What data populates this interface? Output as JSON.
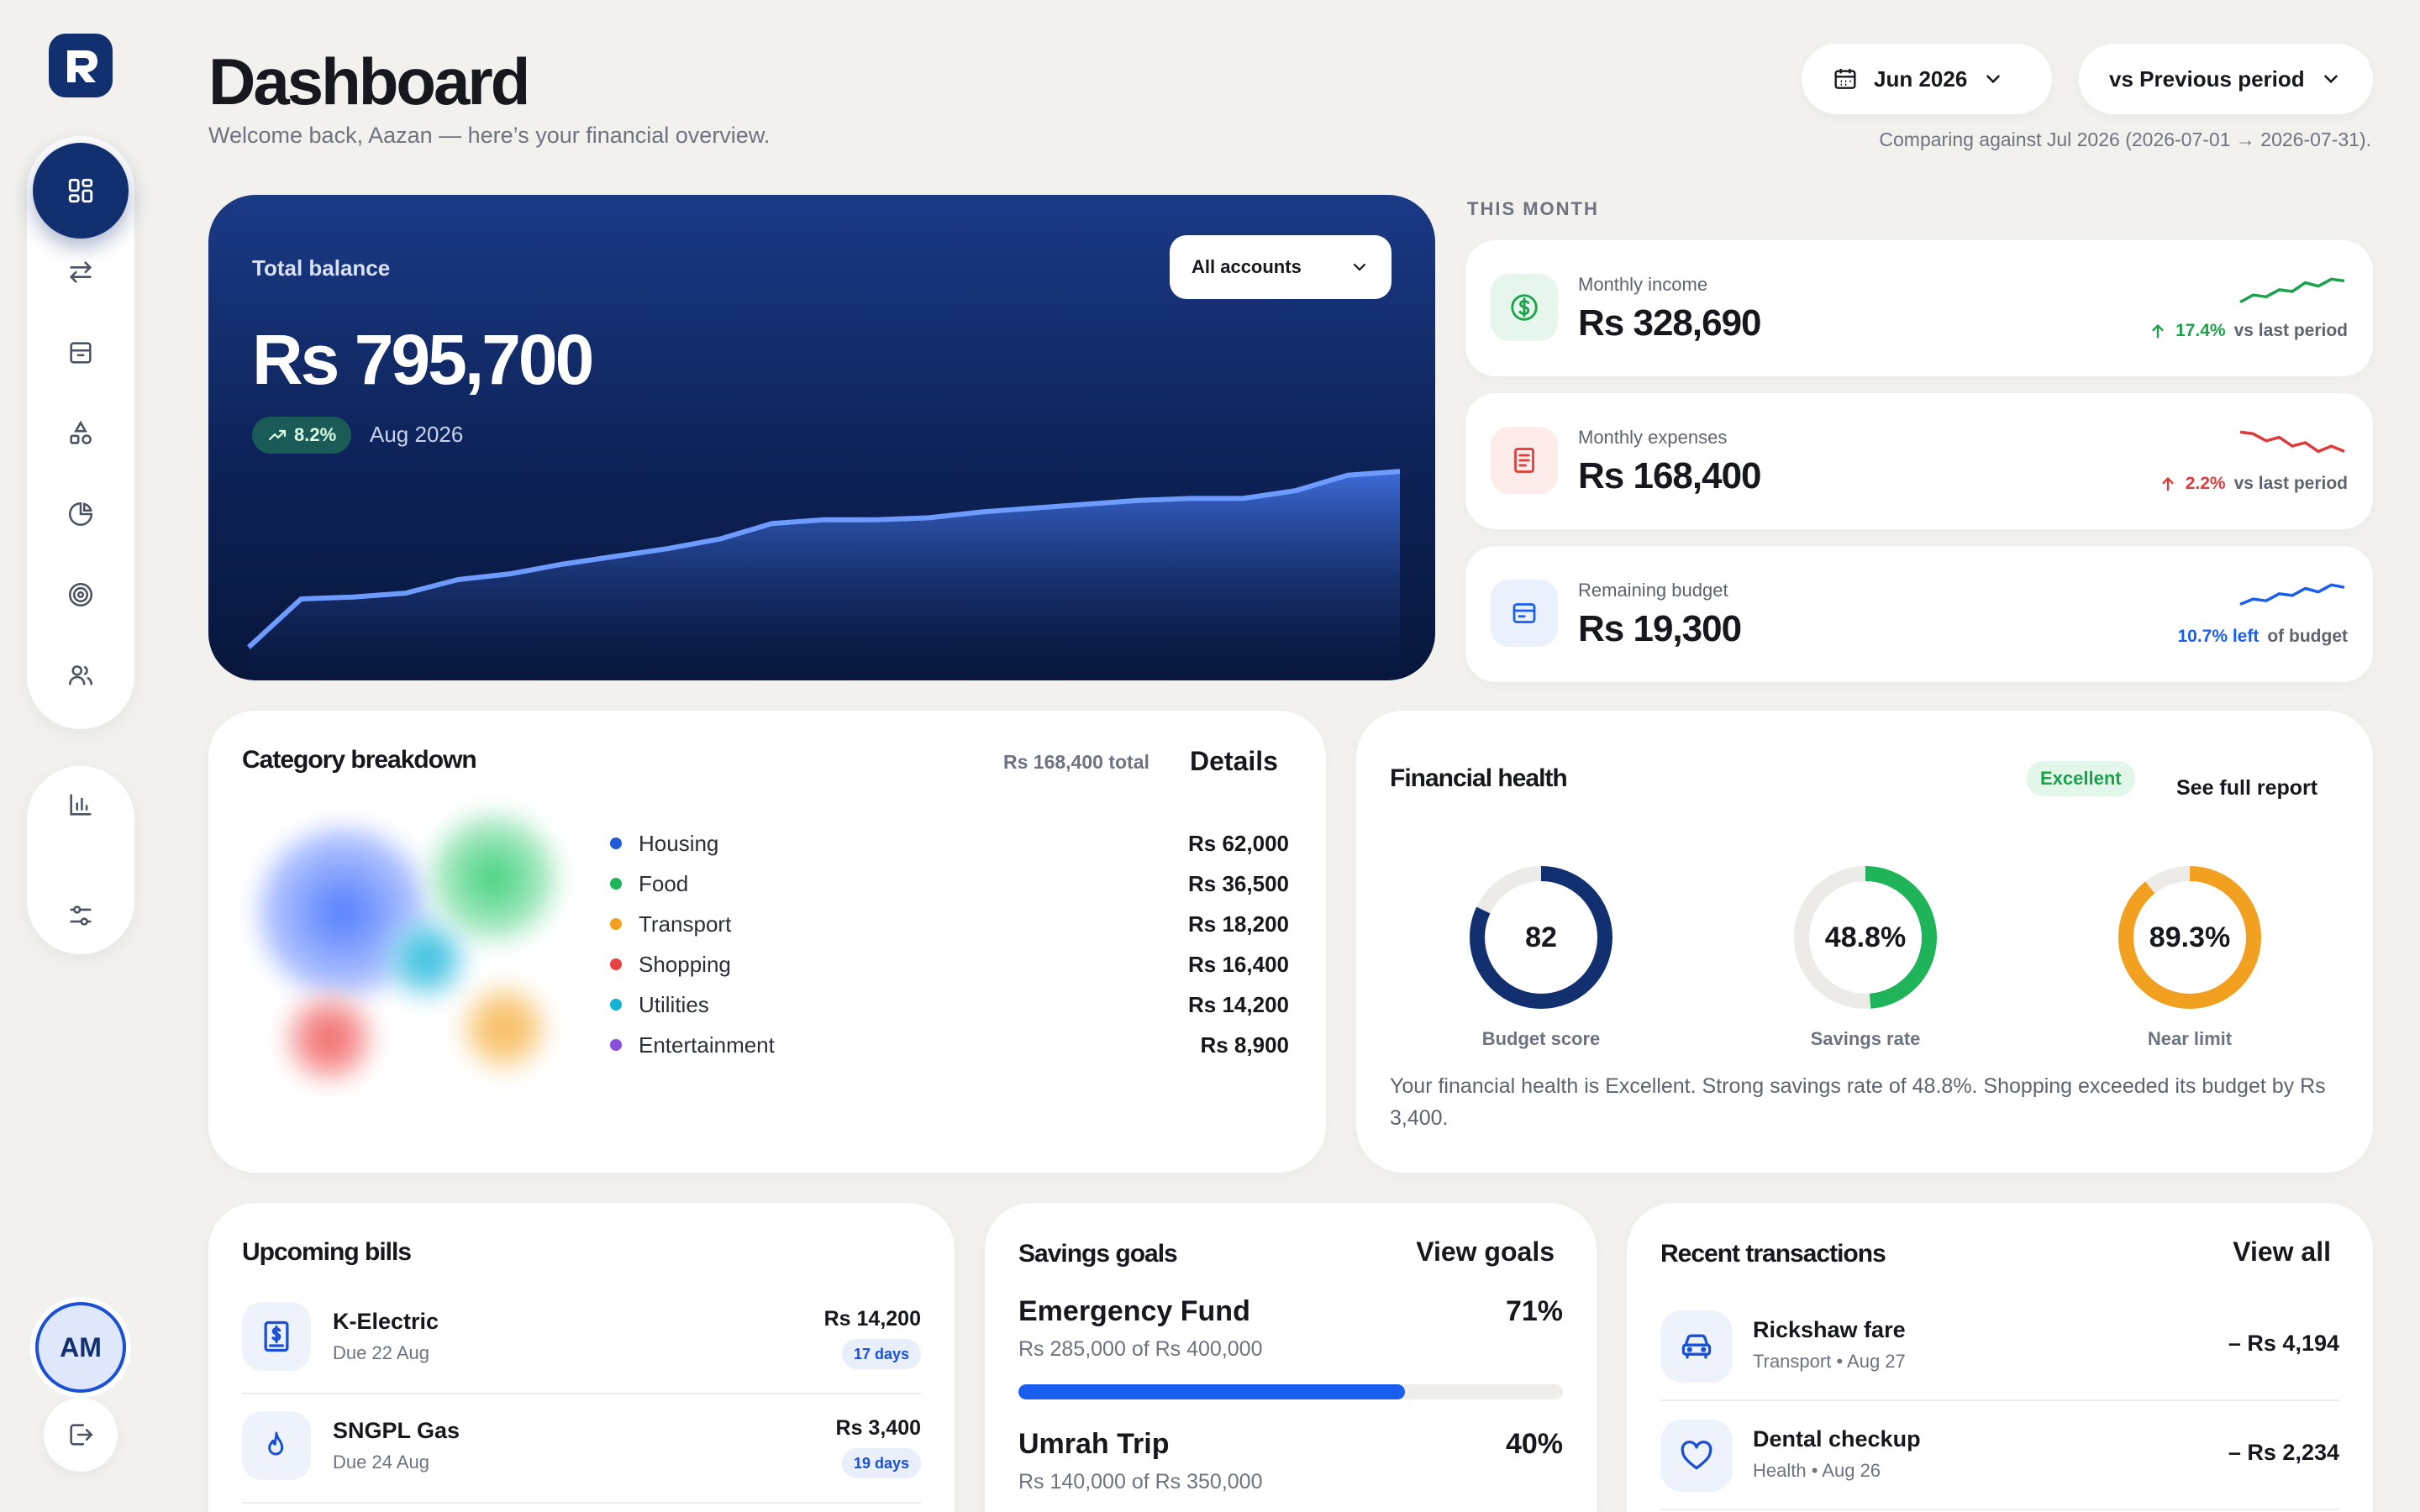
{
  "header": {
    "title": "Dashboard",
    "subtitle": "Welcome back, Aazan — here’s your financial overview.",
    "date_selector": "Jun 2026",
    "compare_selector": "vs Previous period",
    "compare_note": "Comparing against Jul 2026 (2026-07-01 → 2026-07-31)."
  },
  "sidebar": {
    "logo_icon": "r-logo-icon",
    "items": [
      {
        "icon": "dashboard-grid-icon",
        "active": true
      },
      {
        "icon": "transfer-arrows-icon",
        "active": false
      },
      {
        "icon": "inbox-tray-icon",
        "active": false
      },
      {
        "icon": "shapes-icon",
        "active": false
      },
      {
        "icon": "pie-chart-icon",
        "active": false
      },
      {
        "icon": "target-icon",
        "active": false
      },
      {
        "icon": "users-icon",
        "active": false
      }
    ],
    "secondary_items": [
      {
        "icon": "bar-chart-icon"
      },
      {
        "icon": "sliders-icon"
      }
    ],
    "avatar_initials": "AM",
    "logout_icon": "logout-icon"
  },
  "balance": {
    "label": "Total balance",
    "amount": "Rs 795,700",
    "change": "8.2%",
    "period": "Aug 2026",
    "account_filter": "All accounts",
    "trend": [
      0.05,
      0.3,
      0.31,
      0.33,
      0.4,
      0.43,
      0.48,
      0.52,
      0.56,
      0.61,
      0.69,
      0.71,
      0.71,
      0.72,
      0.75,
      0.77,
      0.79,
      0.81,
      0.82,
      0.82,
      0.86,
      0.94,
      0.96
    ]
  },
  "this_month": {
    "label": "THIS MONTH",
    "stats": [
      {
        "label": "Monthly income",
        "value": "Rs 328,690",
        "change": "17.4%",
        "change_text": "vs last period",
        "direction": "up",
        "color": "#1aa34a",
        "icon": "dollar-circle-icon",
        "spark": [
          0.2,
          0.4,
          0.35,
          0.55,
          0.5,
          0.75,
          0.65,
          0.85,
          0.8
        ]
      },
      {
        "label": "Monthly expenses",
        "value": "Rs 168,400",
        "change": "2.2%",
        "change_text": "vs last period",
        "direction": "up",
        "color": "#e03b3b",
        "icon": "receipt-icon",
        "spark": [
          0.85,
          0.8,
          0.6,
          0.7,
          0.45,
          0.55,
          0.3,
          0.45,
          0.3
        ]
      },
      {
        "label": "Remaining budget",
        "value": "Rs 19,300",
        "change": "10.7% left",
        "change_text": "of budget",
        "direction": "none",
        "color": "#1a5ef0",
        "icon": "wallet-icon",
        "spark": [
          0.3,
          0.45,
          0.4,
          0.6,
          0.55,
          0.75,
          0.65,
          0.85,
          0.78
        ]
      }
    ]
  },
  "categories": {
    "title": "Category breakdown",
    "total": "Rs 168,400 total",
    "action": "Details",
    "items": [
      {
        "name": "Housing",
        "amount": "Rs 62,000",
        "color": "#1f5bd8"
      },
      {
        "name": "Food",
        "amount": "Rs 36,500",
        "color": "#1fb45a"
      },
      {
        "name": "Transport",
        "amount": "Rs 18,200",
        "color": "#f1a11f"
      },
      {
        "name": "Shopping",
        "amount": "Rs 16,400",
        "color": "#e84141"
      },
      {
        "name": "Utilities",
        "amount": "Rs 14,200",
        "color": "#16b3d6"
      },
      {
        "name": "Entertainment",
        "amount": "Rs 8,900",
        "color": "#8b4fe0"
      }
    ]
  },
  "health": {
    "title": "Financial health",
    "status": "Excellent",
    "action": "See full report",
    "gauges": [
      {
        "value": "82",
        "fraction": 0.82,
        "label": "Budget score",
        "color": "#12306f"
      },
      {
        "value": "48.8%",
        "fraction": 0.488,
        "label": "Savings rate",
        "color": "#1fb45a"
      },
      {
        "value": "89.3%",
        "fraction": 0.893,
        "label": "Near limit",
        "color": "#f1a11f"
      }
    ],
    "summary": "Your financial health is Excellent. Strong savings rate of 48.8%. Shopping exceeded its budget by Rs 3,400."
  },
  "bills": {
    "title": "Upcoming bills",
    "items": [
      {
        "name": "K-Electric",
        "due": "Due 22 Aug",
        "amount": "Rs 14,200",
        "days": "17 days",
        "icon": "electric-bill-icon"
      },
      {
        "name": "SNGPL Gas",
        "due": "Due 24 Aug",
        "amount": "Rs 3,400",
        "days": "19 days",
        "icon": "flame-icon"
      }
    ]
  },
  "goals": {
    "title": "Savings goals",
    "action": "View goals",
    "items": [
      {
        "name": "Emergency Fund",
        "detail": "Rs 285,000 of Rs 400,000",
        "percent": "71%",
        "progress": 0.71
      },
      {
        "name": "Umrah Trip",
        "detail": "Rs 140,000 of Rs 350,000",
        "percent": "40%",
        "progress": 0.4
      }
    ]
  },
  "transactions": {
    "title": "Recent transactions",
    "action": "View all",
    "items": [
      {
        "name": "Rickshaw fare",
        "meta": "Transport • Aug 27",
        "amount": "– Rs 4,194",
        "icon": "car-icon"
      },
      {
        "name": "Dental checkup",
        "meta": "Health • Aug 26",
        "amount": "– Rs 2,234",
        "icon": "heart-icon"
      }
    ]
  }
}
